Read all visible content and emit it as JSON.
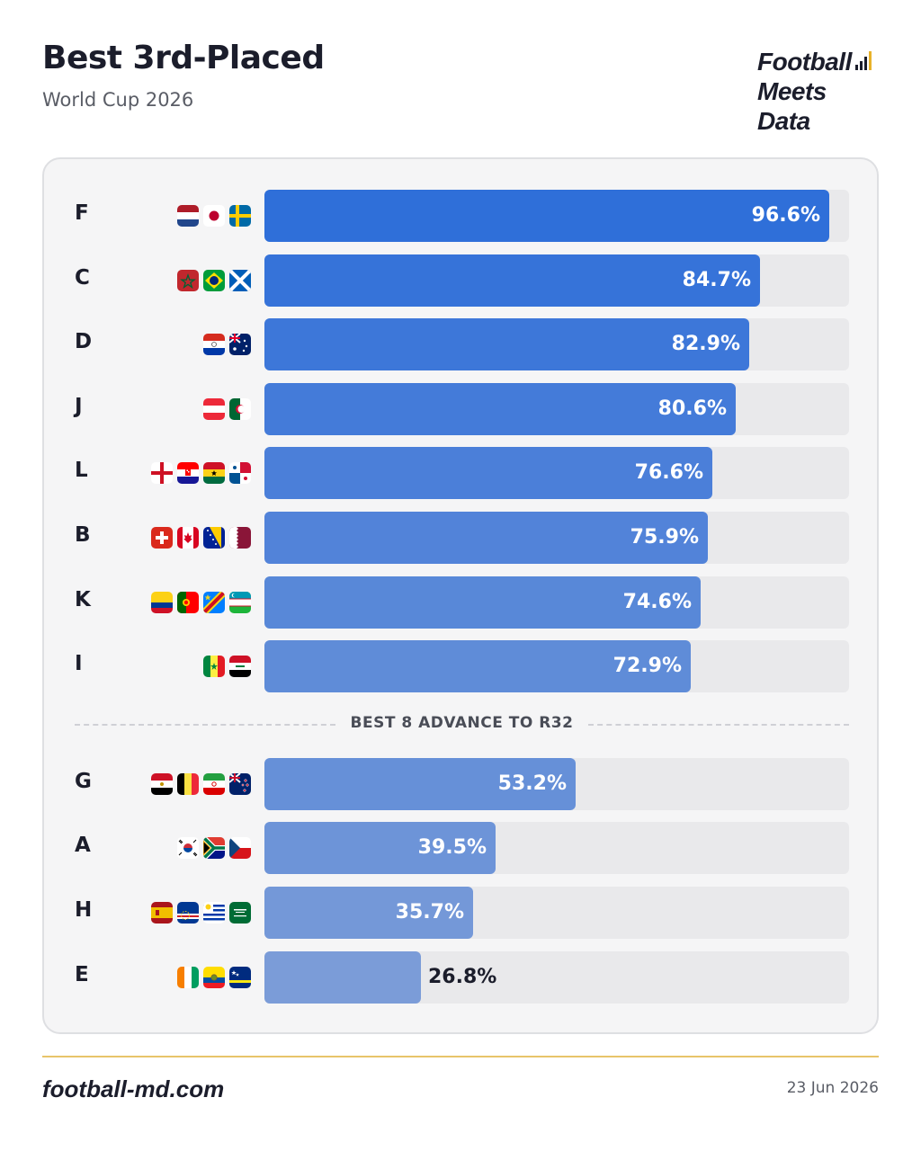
{
  "header": {
    "title": "Best 3rd-Placed",
    "subtitle": "World Cup 2026"
  },
  "brand": {
    "line1": "Football",
    "line2": "Meets",
    "line3": "Data",
    "icon": "bar-chart-icon"
  },
  "colors": {
    "bar_top": "#2f6fd9",
    "bar_bottom": "#7b9cd8",
    "track": "#e9e9eb",
    "accent": "#e8b22a"
  },
  "chart_data": {
    "type": "bar",
    "orientation": "horizontal",
    "title": "Best 3rd-Placed",
    "subtitle": "World Cup 2026",
    "categories": [
      "F",
      "C",
      "D",
      "J",
      "L",
      "B",
      "K",
      "I",
      "G",
      "A",
      "H",
      "E"
    ],
    "values": [
      96.6,
      84.7,
      82.9,
      80.6,
      76.6,
      75.9,
      74.6,
      72.9,
      53.2,
      39.5,
      35.7,
      26.8
    ],
    "labels": [
      "96.6%",
      "84.7%",
      "82.9%",
      "80.6%",
      "76.6%",
      "75.9%",
      "74.6%",
      "72.9%",
      "53.2%",
      "39.5%",
      "35.7%",
      "26.8%"
    ],
    "xlim": [
      0,
      100
    ],
    "unit": "%",
    "cutoff_after_index": 7,
    "cutoff_label": "BEST 8 ADVANCE TO R32",
    "flags": [
      [
        "netherlands-flag-icon",
        "japan-flag-icon",
        "sweden-flag-icon"
      ],
      [
        "morocco-flag-icon",
        "brazil-flag-icon",
        "scotland-flag-icon"
      ],
      [
        "paraguay-flag-icon",
        "australia-flag-icon"
      ],
      [
        "austria-flag-icon",
        "algeria-flag-icon"
      ],
      [
        "england-flag-icon",
        "croatia-flag-icon",
        "ghana-flag-icon",
        "panama-flag-icon"
      ],
      [
        "switzerland-flag-icon",
        "canada-flag-icon",
        "bosnia-flag-icon",
        "qatar-flag-icon"
      ],
      [
        "colombia-flag-icon",
        "portugal-flag-icon",
        "dr-congo-flag-icon",
        "uzbekistan-flag-icon"
      ],
      [
        "senegal-flag-icon",
        "iraq-flag-icon"
      ],
      [
        "egypt-flag-icon",
        "belgium-flag-icon",
        "iran-flag-icon",
        "new-zealand-flag-icon"
      ],
      [
        "south-korea-flag-icon",
        "south-africa-flag-icon",
        "czechia-flag-icon"
      ],
      [
        "spain-flag-icon",
        "cape-verde-flag-icon",
        "uruguay-flag-icon",
        "saudi-arabia-flag-icon"
      ],
      [
        "ivory-coast-flag-icon",
        "ecuador-flag-icon",
        "curacao-flag-icon"
      ]
    ]
  },
  "footer": {
    "site": "football-md.com",
    "date": "23 Jun 2026"
  }
}
